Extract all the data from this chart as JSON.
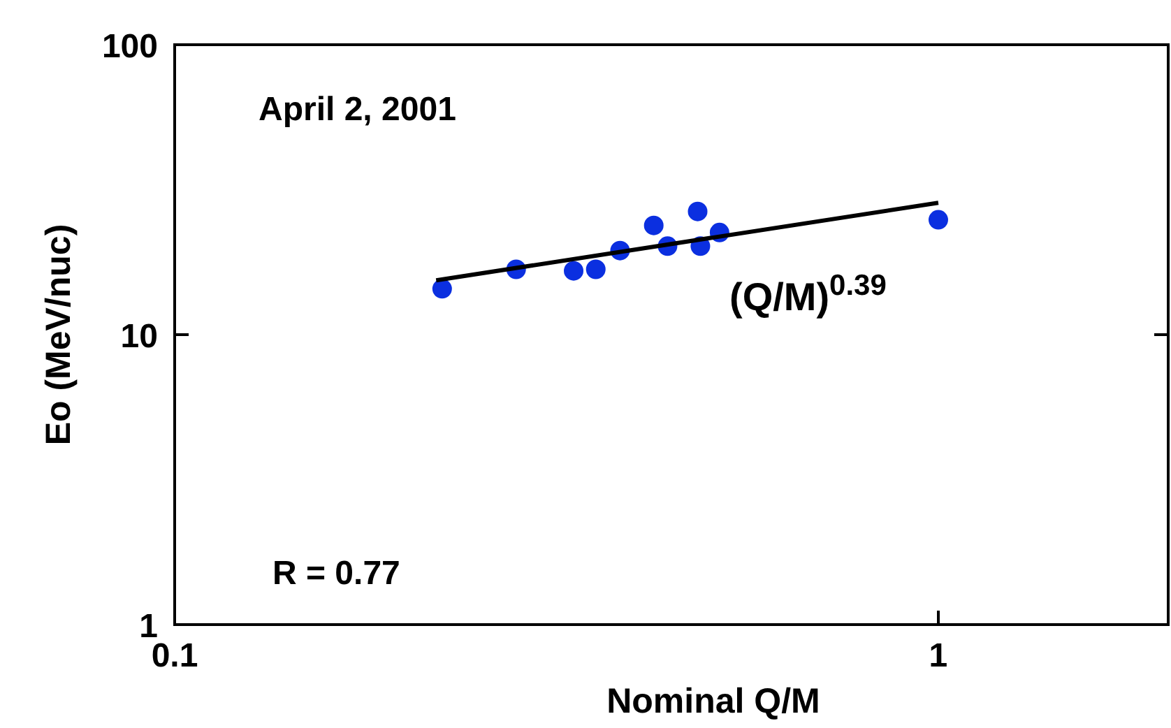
{
  "chart_data": {
    "type": "scatter",
    "xlabel": "Nominal Q/M",
    "ylabel": "Eo (MeV/nuc)",
    "log": "xy",
    "xlim": [
      0.1,
      2
    ],
    "ylim": [
      1,
      100
    ],
    "xticks": [
      0.1,
      1
    ],
    "yticks": [
      1,
      10,
      100
    ],
    "grid": false,
    "annotations": [
      "April 2, 2001",
      "(Q/M)$^{0.39}$",
      "R = 0.77"
    ],
    "series": [
      {
        "marker": "circle",
        "color": "#0b2fe0",
        "x": [
          0.224,
          0.28,
          0.333,
          0.356,
          0.383,
          0.424,
          0.442,
          0.484,
          0.488,
          0.517,
          1.0
        ],
        "values": [
          14.4,
          16.8,
          16.6,
          16.8,
          19.5,
          23.8,
          20.2,
          26.6,
          20.2,
          22.5,
          24.9
        ]
      },
      {
        "type": "line",
        "color": "#000000",
        "x": [
          0.22,
          1.0
        ],
        "values": [
          15.4,
          28.5
        ],
        "marker": "none",
        "line_style": "solid"
      }
    ]
  }
}
